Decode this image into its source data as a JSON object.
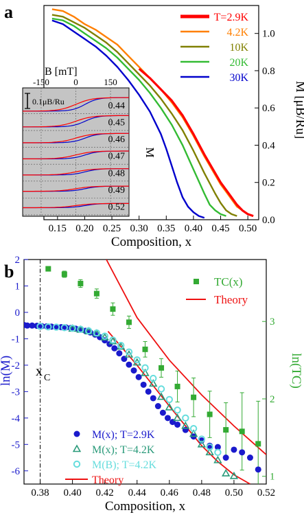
{
  "figure": {
    "panel_a_label": "a",
    "panel_b_label": "b"
  },
  "chart_data": [
    {
      "id": "panel-a",
      "type": "line",
      "xlabel": "Composition, x",
      "ylabel": "M [μB/Ru]",
      "xlim": [
        0.125,
        0.52
      ],
      "ylim": [
        0,
        1.15
      ],
      "xticks": [
        0.15,
        0.2,
        0.25,
        0.3,
        0.35,
        0.4,
        0.45,
        0.5
      ],
      "yticks": [
        0.0,
        0.2,
        0.4,
        0.6,
        0.8,
        1.0
      ],
      "grid": false,
      "legend_position": "top-right",
      "series": [
        {
          "name": "T=2.9K",
          "color": "#ff0000",
          "x": [
            0.3,
            0.32,
            0.34,
            0.36,
            0.38,
            0.4,
            0.42,
            0.44,
            0.45,
            0.46,
            0.47,
            0.48,
            0.49,
            0.5,
            0.51
          ],
          "y": [
            0.81,
            0.76,
            0.7,
            0.64,
            0.56,
            0.46,
            0.35,
            0.25,
            0.2,
            0.16,
            0.12,
            0.08,
            0.05,
            0.03,
            0.02
          ]
        },
        {
          "name": "4.2K",
          "color": "#ff7f00",
          "x": [
            0.14,
            0.16,
            0.18,
            0.2,
            0.22,
            0.24,
            0.26,
            0.28,
            0.3,
            0.32,
            0.34,
            0.36,
            0.38,
            0.4,
            0.42,
            0.44,
            0.45,
            0.46,
            0.47,
            0.48,
            0.49,
            0.5,
            0.51
          ],
          "y": [
            1.13,
            1.12,
            1.09,
            1.05,
            1.02,
            0.98,
            0.94,
            0.88,
            0.82,
            0.76,
            0.7,
            0.63,
            0.55,
            0.45,
            0.34,
            0.24,
            0.19,
            0.15,
            0.11,
            0.07,
            0.05,
            0.03,
            0.02
          ]
        },
        {
          "name": "10K",
          "color": "#808000",
          "x": [
            0.14,
            0.16,
            0.18,
            0.2,
            0.22,
            0.24,
            0.26,
            0.28,
            0.3,
            0.32,
            0.34,
            0.36,
            0.38,
            0.4,
            0.42,
            0.44,
            0.45,
            0.46,
            0.47,
            0.48
          ],
          "y": [
            1.1,
            1.09,
            1.06,
            1.03,
            0.99,
            0.95,
            0.9,
            0.84,
            0.78,
            0.72,
            0.65,
            0.57,
            0.48,
            0.37,
            0.25,
            0.14,
            0.09,
            0.05,
            0.03,
            0.02
          ]
        },
        {
          "name": "20K",
          "color": "#33bb33",
          "x": [
            0.14,
            0.16,
            0.18,
            0.2,
            0.22,
            0.24,
            0.26,
            0.28,
            0.3,
            0.32,
            0.34,
            0.36,
            0.38,
            0.4,
            0.42,
            0.43,
            0.44,
            0.45,
            0.46
          ],
          "y": [
            1.08,
            1.07,
            1.04,
            1.0,
            0.96,
            0.92,
            0.87,
            0.81,
            0.75,
            0.68,
            0.6,
            0.51,
            0.4,
            0.27,
            0.14,
            0.08,
            0.05,
            0.03,
            0.02
          ]
        },
        {
          "name": "30K",
          "color": "#0000cc",
          "x": [
            0.14,
            0.16,
            0.18,
            0.2,
            0.22,
            0.24,
            0.26,
            0.28,
            0.3,
            0.32,
            0.34,
            0.35,
            0.36,
            0.37,
            0.38,
            0.39,
            0.4,
            0.41,
            0.42
          ],
          "y": [
            1.07,
            1.05,
            1.01,
            0.97,
            0.93,
            0.88,
            0.82,
            0.75,
            0.67,
            0.58,
            0.46,
            0.38,
            0.29,
            0.2,
            0.12,
            0.07,
            0.04,
            0.02,
            0.01
          ]
        }
      ]
    },
    {
      "id": "panel-a-inset",
      "type": "line",
      "xlabel": "B [mT]",
      "ylabel": "M",
      "scale_bar_label": "0.1μB/Ru",
      "xlim": [
        -230,
        230
      ],
      "xticks": [
        -150,
        0,
        150
      ],
      "grid": true,
      "rows": [
        "0.44",
        "0.45",
        "0.46",
        "0.47",
        "0.48",
        "0.49",
        "0.52"
      ],
      "row_amplitudes": [
        0.9,
        0.75,
        0.62,
        0.52,
        0.42,
        0.34,
        0.28
      ],
      "series": [
        {
          "name": "",
          "color": "#ff0000"
        },
        {
          "name": "",
          "color": "#0000cc"
        }
      ]
    },
    {
      "id": "panel-b",
      "type": "scatter",
      "xlabel": "Composition, x",
      "ylabel": "ln(M)",
      "ylabel_right": "ln(TC)",
      "xlim": [
        0.37,
        0.52
      ],
      "ylim": [
        -6.5,
        2.0
      ],
      "ylim_right": [
        0.9,
        3.8
      ],
      "xticks": [
        0.38,
        0.4,
        0.42,
        0.44,
        0.46,
        0.48,
        0.5,
        0.52
      ],
      "yticks": [
        2,
        1,
        0,
        -1,
        -2,
        -3,
        -4,
        -5,
        -6
      ],
      "yticks_right": [
        1,
        2,
        3
      ],
      "critical_line": {
        "x": 0.38,
        "label": "x",
        "label_sub": "C"
      },
      "legend_top": [
        {
          "label": "TC(x)",
          "marker": "square",
          "color": "#33aa33"
        },
        {
          "label": "Theory",
          "marker": "line",
          "color": "#ee1111"
        }
      ],
      "legend_bottom": [
        {
          "label": "M(x); T=2.9K",
          "marker": "circle",
          "color": "#1a1acc"
        },
        {
          "label": "M(x); T=4.2K",
          "marker": "triangle",
          "color": "#2a9a7a"
        },
        {
          "label": "M(B); T=4.2K",
          "marker": "ring",
          "color": "#66dddd"
        },
        {
          "label": "Theory",
          "marker": "line",
          "color": "#ee1111"
        }
      ],
      "series": [
        {
          "name": "TC(x)",
          "axis": "right",
          "color": "#33aa33",
          "marker": "square",
          "x": [
            0.385,
            0.395,
            0.405,
            0.415,
            0.425,
            0.435,
            0.445,
            0.455,
            0.465,
            0.475,
            0.485,
            0.495,
            0.505,
            0.515
          ],
          "y": [
            3.68,
            3.61,
            3.49,
            3.36,
            3.16,
            2.99,
            2.64,
            2.4,
            2.16,
            2.02,
            1.8,
            1.6,
            1.58,
            1.42
          ],
          "err": [
            0.03,
            0.04,
            0.05,
            0.06,
            0.08,
            0.08,
            0.1,
            0.12,
            0.2,
            0.25,
            0.3,
            0.35,
            0.5,
            0.55
          ]
        },
        {
          "name": "M(x); T=2.9K",
          "axis": "left",
          "color": "#1a1acc",
          "marker": "circle",
          "x": [
            0.37,
            0.372,
            0.375,
            0.378,
            0.381,
            0.384,
            0.387,
            0.39,
            0.393,
            0.396,
            0.399,
            0.402,
            0.405,
            0.408,
            0.411,
            0.414,
            0.417,
            0.42,
            0.423,
            0.426,
            0.429,
            0.432,
            0.435,
            0.438,
            0.441,
            0.444,
            0.447,
            0.45,
            0.453,
            0.456,
            0.459,
            0.462,
            0.465,
            0.47,
            0.475,
            0.48,
            0.485,
            0.49,
            0.495,
            0.5,
            0.505,
            0.51,
            0.515
          ],
          "y": [
            -0.48,
            -0.5,
            -0.5,
            -0.51,
            -0.52,
            -0.53,
            -0.54,
            -0.55,
            -0.56,
            -0.57,
            -0.59,
            -0.62,
            -0.65,
            -0.7,
            -0.76,
            -0.84,
            -0.94,
            -1.06,
            -1.2,
            -1.36,
            -1.55,
            -1.76,
            -1.98,
            -2.2,
            -2.45,
            -2.74,
            -3.0,
            -3.25,
            -3.55,
            -3.8,
            -4.0,
            -4.15,
            -4.25,
            -4.45,
            -4.7,
            -4.85,
            -5.05,
            -5.1,
            -5.5,
            -5.2,
            -5.3,
            -5.5,
            -5.95
          ]
        },
        {
          "name": "M(x); T=4.2K",
          "axis": "left",
          "color": "#2a9a7a",
          "marker": "triangle",
          "x": [
            0.4,
            0.405,
            0.41,
            0.415,
            0.42,
            0.425,
            0.43,
            0.435,
            0.44,
            0.445,
            0.45,
            0.455,
            0.46,
            0.465,
            0.47,
            0.475,
            0.48,
            0.485,
            0.49,
            0.495,
            0.5
          ],
          "y": [
            -0.62,
            -0.66,
            -0.72,
            -0.8,
            -0.95,
            -1.1,
            -1.3,
            -1.6,
            -1.9,
            -2.3,
            -2.7,
            -3.2,
            -3.6,
            -4.0,
            -4.3,
            -4.6,
            -5.0,
            -5.3,
            -5.6,
            -6.1,
            -6.2
          ]
        },
        {
          "name": "M(B); T=4.2K",
          "axis": "left",
          "color": "#66dddd",
          "marker": "ring",
          "x": [
            0.38,
            0.385,
            0.39,
            0.395,
            0.4,
            0.405,
            0.41,
            0.415,
            0.42,
            0.425,
            0.43,
            0.435,
            0.44,
            0.445,
            0.45,
            0.455,
            0.46,
            0.465,
            0.47,
            0.475,
            0.48,
            0.485,
            0.49
          ],
          "y": [
            -0.53,
            -0.55,
            -0.56,
            -0.58,
            -0.6,
            -0.64,
            -0.7,
            -0.78,
            -0.9,
            -1.05,
            -1.25,
            -1.5,
            -1.8,
            -2.1,
            -2.5,
            -2.9,
            -3.3,
            -3.7,
            -4.0,
            -4.4,
            -4.8,
            -5.1,
            -5.3
          ]
        }
      ],
      "theory_lines": [
        {
          "name": "Theory (TC)",
          "axis": "right",
          "color": "#ee1111",
          "x": [
            0.421,
            0.44,
            0.46,
            0.48,
            0.5,
            0.52
          ],
          "y": [
            3.8,
            3.05,
            2.5,
            2.05,
            1.65,
            1.28
          ]
        },
        {
          "name": "Theory (M)",
          "axis": "left",
          "color": "#ee1111",
          "x": [
            0.422,
            0.44,
            0.46,
            0.48,
            0.49,
            0.5,
            0.51
          ],
          "y": [
            -0.72,
            -2.0,
            -3.55,
            -5.05,
            -5.65,
            -6.15,
            -6.5
          ]
        }
      ]
    }
  ]
}
